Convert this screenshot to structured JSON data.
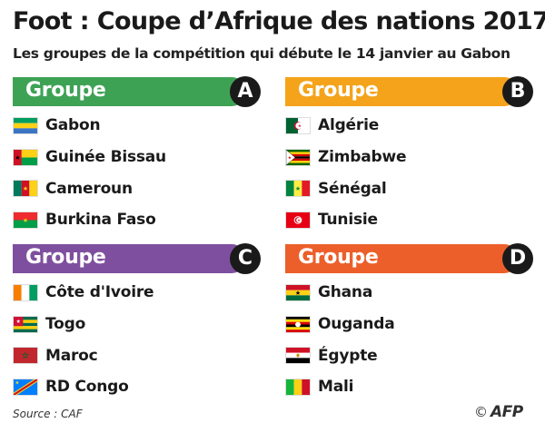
{
  "header": {
    "title": "Foot : Coupe d’Afrique des nations 2017",
    "subtitle": "Les groupes de la compétition qui débute le 14 janvier au Gabon"
  },
  "colors": {
    "group_a": "#3ea255",
    "group_b": "#f4a31b",
    "group_c": "#7f4f9f",
    "group_d": "#ec5f2b",
    "badge": "#1a1a1a"
  },
  "groups": [
    {
      "label": "Groupe",
      "letter": "A",
      "teams": [
        {
          "name": "Gabon",
          "flag": "flag-gabon"
        },
        {
          "name": "Guinée Bissau",
          "flag": "flag-guinea-bissau"
        },
        {
          "name": "Cameroun",
          "flag": "flag-cameroon"
        },
        {
          "name": "Burkina Faso",
          "flag": "flag-burkina-faso"
        }
      ]
    },
    {
      "label": "Groupe",
      "letter": "B",
      "teams": [
        {
          "name": "Algérie",
          "flag": "flag-algeria"
        },
        {
          "name": "Zimbabwe",
          "flag": "flag-zimbabwe"
        },
        {
          "name": "Sénégal",
          "flag": "flag-senegal"
        },
        {
          "name": "Tunisie",
          "flag": "flag-tunisia"
        }
      ]
    },
    {
      "label": "Groupe",
      "letter": "C",
      "teams": [
        {
          "name": "Côte d'Ivoire",
          "flag": "flag-ivory-coast"
        },
        {
          "name": "Togo",
          "flag": "flag-togo"
        },
        {
          "name": "Maroc",
          "flag": "flag-morocco"
        },
        {
          "name": "RD Congo",
          "flag": "flag-dr-congo"
        }
      ]
    },
    {
      "label": "Groupe",
      "letter": "D",
      "teams": [
        {
          "name": "Ghana",
          "flag": "flag-ghana"
        },
        {
          "name": "Ouganda",
          "flag": "flag-uganda"
        },
        {
          "name": "Égypte",
          "flag": "flag-egypt"
        },
        {
          "name": "Mali",
          "flag": "flag-mali"
        }
      ]
    }
  ],
  "footer": {
    "source": "Source : CAF",
    "copyright": "©",
    "logo": "AFP"
  }
}
